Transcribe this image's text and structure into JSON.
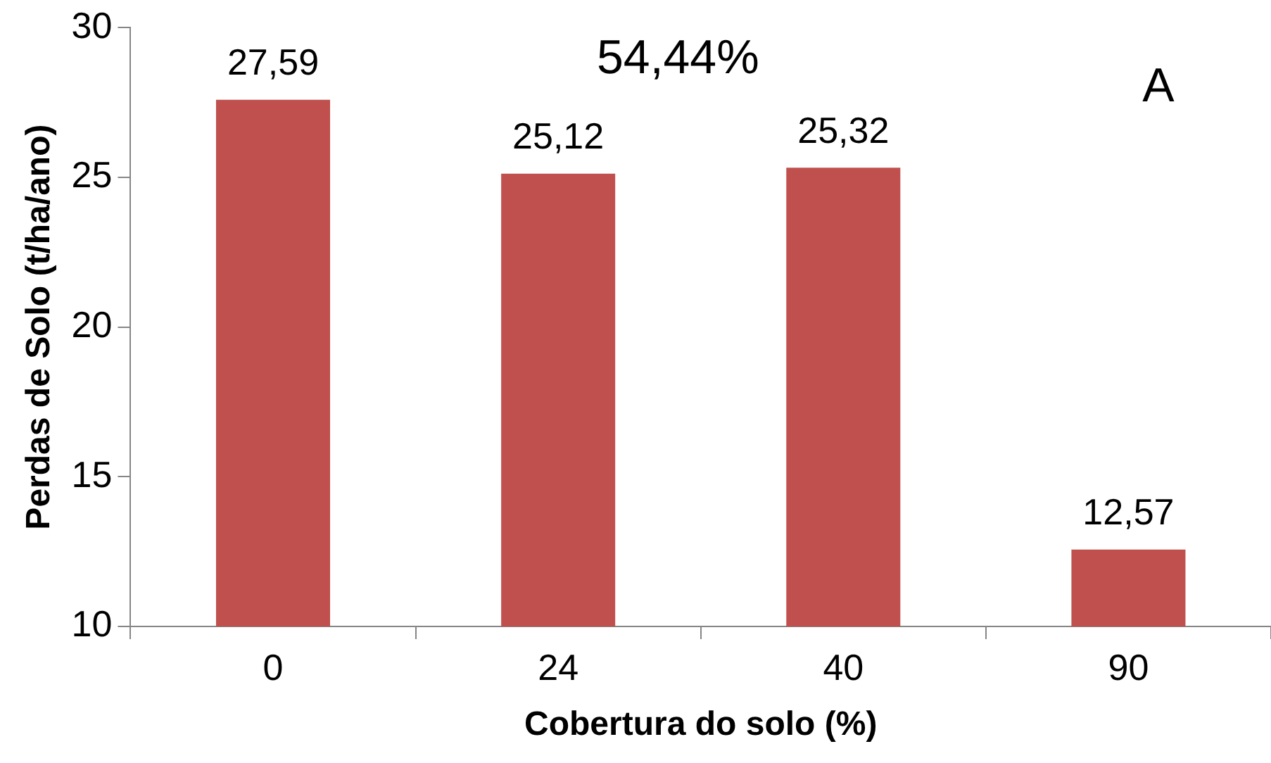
{
  "chart_data": {
    "type": "bar",
    "xlabel": "Cobertura do solo (%)",
    "ylabel": "Perdas de Solo (t/ha/ano)",
    "categories": [
      "0",
      "24",
      "40",
      "90"
    ],
    "values": [
      27.59,
      25.12,
      25.32,
      12.57
    ],
    "value_labels": [
      "27,59",
      "25,12",
      "25,32",
      "12,57"
    ],
    "color": "#c0504d",
    "ylim": [
      10,
      30
    ],
    "yticks": [
      10,
      15,
      20,
      25,
      30
    ],
    "grid": false,
    "legend": false,
    "annotations": [
      "54,44%",
      "A"
    ]
  }
}
